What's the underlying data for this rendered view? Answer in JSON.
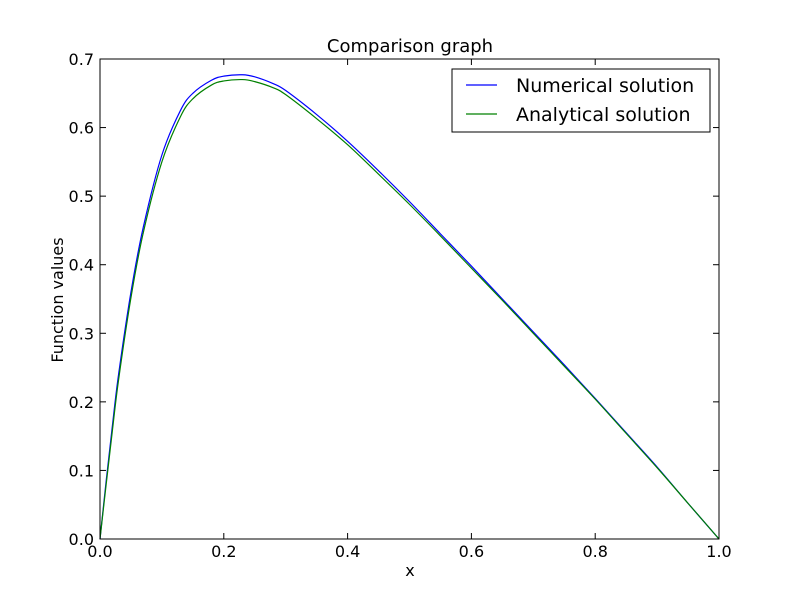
{
  "chart_data": {
    "type": "line",
    "title": "Comparison graph",
    "xlabel": "x",
    "ylabel": "Function values",
    "xlim": [
      0.0,
      1.0
    ],
    "ylim": [
      0.0,
      0.7
    ],
    "x_ticks": [
      "0.0",
      "0.2",
      "0.4",
      "0.6",
      "0.8",
      "1.0"
    ],
    "y_ticks": [
      "0.0",
      "0.1",
      "0.2",
      "0.3",
      "0.4",
      "0.5",
      "0.6",
      "0.7"
    ],
    "grid": false,
    "legend_position": "top-right",
    "x": [
      0.0,
      0.01,
      0.02,
      0.03,
      0.05,
      0.07,
      0.1,
      0.13,
      0.15,
      0.18,
      0.2,
      0.23,
      0.25,
      0.28,
      0.3,
      0.35,
      0.4,
      0.45,
      0.5,
      0.55,
      0.6,
      0.65,
      0.7,
      0.75,
      0.8,
      0.85,
      0.9,
      0.95,
      1.0
    ],
    "series": [
      {
        "name": "Numerical solution",
        "color": "#0000ff",
        "values": [
          0.0,
          0.085,
          0.165,
          0.24,
          0.36,
          0.455,
          0.56,
          0.625,
          0.65,
          0.669,
          0.675,
          0.677,
          0.674,
          0.664,
          0.654,
          0.619,
          0.58,
          0.537,
          0.492,
          0.445,
          0.398,
          0.35,
          0.302,
          0.254,
          0.205,
          0.155,
          0.105,
          0.052,
          0.0
        ]
      },
      {
        "name": "Analytical solution",
        "color": "#008000",
        "values": [
          0.0,
          0.08,
          0.158,
          0.232,
          0.352,
          0.447,
          0.55,
          0.616,
          0.642,
          0.662,
          0.668,
          0.67,
          0.667,
          0.658,
          0.648,
          0.613,
          0.575,
          0.532,
          0.488,
          0.442,
          0.395,
          0.348,
          0.3,
          0.252,
          0.204,
          0.154,
          0.104,
          0.052,
          0.0
        ]
      }
    ]
  }
}
